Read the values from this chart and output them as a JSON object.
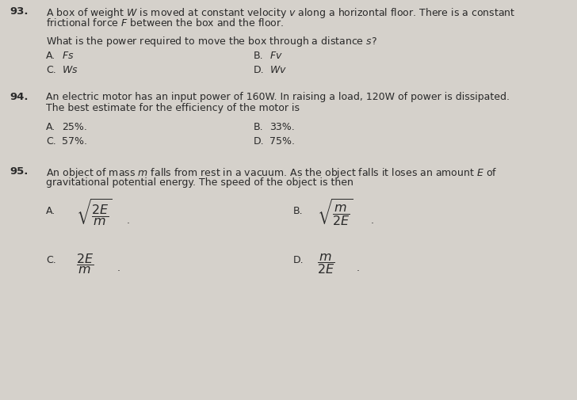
{
  "bg_color": "#d5d1cb",
  "text_color": "#2a2a2a",
  "fontsize_num": 9.5,
  "fontsize_body": 9.0,
  "fontsize_ans": 9.0,
  "fontsize_math": 11.5,
  "q93_num": "93.",
  "q93_line1": "A box of weight $W$ is moved at constant velocity $v$ along a horizontal floor. There is a constant",
  "q93_line2": "frictional force $F$ between the box and the floor.",
  "q93_sub": "What is the power required to move the box through a distance $s$?",
  "q93_A_ans": "$Fs$",
  "q93_B_ans": "$Fv$",
  "q93_C_ans": "$Ws$",
  "q93_D_ans": "$Wv$",
  "q94_num": "94.",
  "q94_line1": "An electric motor has an input power of 160W. In raising a load, 120W of power is dissipated.",
  "q94_line2": "The best estimate for the efficiency of the motor is",
  "q94_A_ans": "25%.",
  "q94_B_ans": "33%.",
  "q94_C_ans": "57%.",
  "q94_D_ans": "75%.",
  "q95_num": "95.",
  "q95_line1": "An object of mass $m$ falls from rest in a vacuum. As the object falls it loses an amount $E$ of",
  "q95_line2": "gravitational potential energy. The speed of the object is then"
}
